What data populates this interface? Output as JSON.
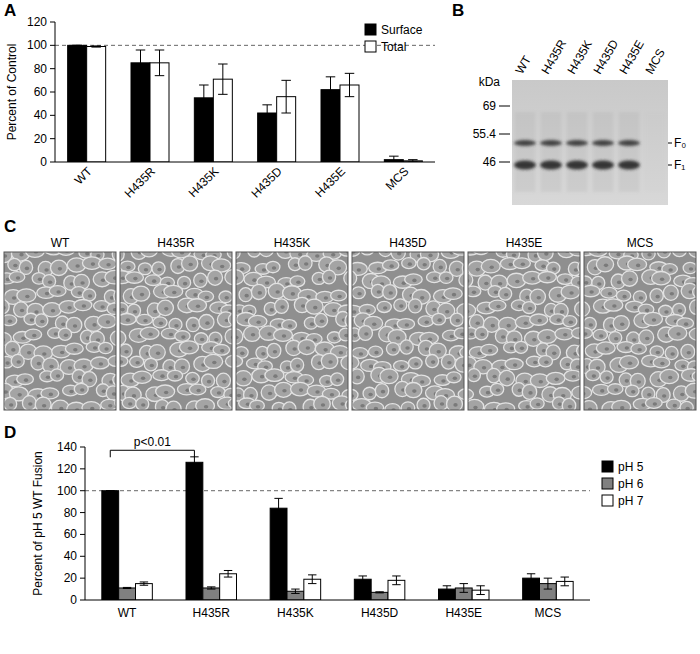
{
  "chart_data": [
    {
      "type": "bar",
      "title": "A",
      "ylabel": "Percent of Control",
      "categories": [
        "WT",
        "H435R",
        "H435K",
        "H435D",
        "H435E",
        "MCS"
      ],
      "series": [
        {
          "name": "Surface",
          "color": "#000000",
          "values": [
            100,
            85,
            55,
            42,
            62,
            2
          ],
          "errors": [
            0,
            11,
            11,
            7,
            11,
            3
          ]
        },
        {
          "name": "Total",
          "color": "#ffffff",
          "values": [
            99,
            85,
            71,
            56,
            66,
            1
          ],
          "errors": [
            0.5,
            11,
            13,
            14,
            10,
            1
          ]
        }
      ],
      "ylim": [
        0,
        120
      ],
      "yticks": [
        0,
        20,
        40,
        60,
        80,
        100,
        120
      ],
      "legend": "top-right",
      "hline": 100
    },
    {
      "type": "bar",
      "title": "D",
      "ylabel": "Percent of pH 5 WT Fusion",
      "categories": [
        "WT",
        "H435R",
        "H435K",
        "H435D",
        "H435E",
        "MCS"
      ],
      "series": [
        {
          "name": "pH 5",
          "color": "#000000",
          "values": [
            100,
            126,
            84,
            19,
            10,
            20
          ],
          "errors": [
            0,
            5,
            9,
            3,
            3,
            4
          ]
        },
        {
          "name": "pH 6",
          "color": "#808080",
          "values": [
            11,
            11,
            8,
            7,
            11,
            15
          ],
          "errors": [
            0.5,
            1,
            2,
            0.5,
            4,
            5
          ]
        },
        {
          "name": "pH 7",
          "color": "#ffffff",
          "values": [
            15,
            24,
            19,
            18,
            9,
            17
          ],
          "errors": [
            1.5,
            3,
            4,
            4,
            4,
            4
          ]
        }
      ],
      "ylim": [
        0,
        140
      ],
      "yticks": [
        0,
        20,
        40,
        60,
        80,
        100,
        120,
        140
      ],
      "legend": "right",
      "hline": 100,
      "annotations": [
        {
          "label": "p<0.01",
          "categories": [
            "WT",
            "H435R"
          ],
          "y": 137
        }
      ]
    }
  ],
  "gel": {
    "title": "B",
    "unit": "kDa",
    "markers": [
      69,
      55.4,
      46
    ],
    "bands": [
      "F₀",
      "F₁"
    ],
    "lanes": [
      {
        "label": "WT",
        "bands": [
          "F₀",
          "F₁"
        ]
      },
      {
        "label": "H435R",
        "bands": [
          "F₀",
          "F₁"
        ]
      },
      {
        "label": "H435K",
        "bands": [
          "F₀",
          "F₁"
        ]
      },
      {
        "label": "H435D",
        "bands": [
          "F₀",
          "F₁"
        ]
      },
      {
        "label": "H435E",
        "bands": [
          "F₀",
          "F₁"
        ]
      },
      {
        "label": "MCS",
        "bands": []
      }
    ]
  },
  "micrographs": {
    "title": "C",
    "labels": [
      "WT",
      "H435R",
      "H435K",
      "H435D",
      "H435E",
      "MCS"
    ]
  }
}
